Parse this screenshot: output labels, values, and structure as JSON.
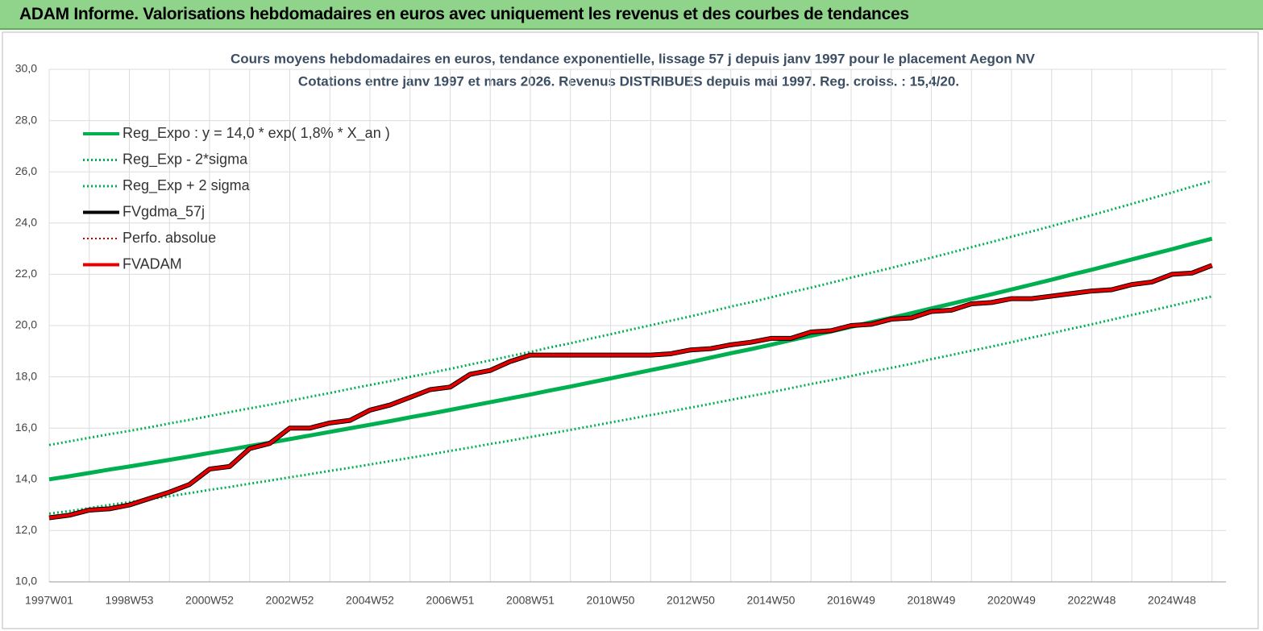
{
  "header": {
    "title": "ADAM Informe. Valorisations hebdomadaires en euros avec uniquement les revenus et des courbes de tendances"
  },
  "chart_data": {
    "type": "line",
    "title": "Cours moyens hebdomadaires en euros, tendance exponentielle, lissage 57 j depuis janv 1997 pour le placement Aegon NV",
    "subtitle": "Cotations entre janv 1997 et mars 2026. Revenus DISTRIBUES depuis mai 1997. Reg. croiss. : 15,4/20.",
    "categories": [
      "1997W01",
      null,
      null,
      null,
      "1998W53",
      null,
      null,
      null,
      "2000W52",
      null,
      null,
      null,
      "2002W52",
      null,
      null,
      null,
      "2004W52",
      null,
      null,
      null,
      "2006W51",
      null,
      null,
      null,
      "2008W51",
      null,
      null,
      null,
      "2010W50",
      null,
      null,
      null,
      "2012W50",
      null,
      null,
      null,
      "2014W50",
      null,
      null,
      null,
      "2016W49",
      null,
      null,
      null,
      "2018W49",
      null,
      null,
      null,
      "2020W49",
      null,
      null,
      null,
      "2022W48",
      null,
      null,
      null,
      "2024W48",
      null,
      null
    ],
    "ylim": [
      10,
      30
    ],
    "yticks": [
      {
        "value": 10,
        "label": "10,0"
      },
      {
        "value": 12,
        "label": "12,0"
      },
      {
        "value": 14,
        "label": "14,0"
      },
      {
        "value": 16,
        "label": "16,0"
      },
      {
        "value": 18,
        "label": "18,0"
      },
      {
        "value": 20,
        "label": "20,0"
      },
      {
        "value": 22,
        "label": "22,0"
      },
      {
        "value": 24,
        "label": "24,0"
      },
      {
        "value": 26,
        "label": "26,0"
      },
      {
        "value": 28,
        "label": "28,0"
      },
      {
        "value": 30,
        "label": "30,0"
      }
    ],
    "grid": true,
    "legend": "top-left",
    "series": [
      {
        "name": "Reg_Expo : y = 14,0 * exp( 1,8% *  X_an )",
        "color": "#00b050",
        "style": "solid",
        "width": 5,
        "values": [
          14.0,
          14.12,
          14.25,
          14.38,
          14.5,
          14.63,
          14.76,
          14.89,
          15.03,
          15.16,
          15.3,
          15.43,
          15.57,
          15.71,
          15.85,
          15.99,
          16.13,
          16.27,
          16.42,
          16.56,
          16.71,
          16.86,
          17.01,
          17.16,
          17.31,
          17.47,
          17.62,
          17.78,
          17.94,
          18.1,
          18.26,
          18.42,
          18.58,
          18.75,
          18.92,
          19.08,
          19.25,
          19.43,
          19.6,
          19.77,
          19.95,
          20.13,
          20.3,
          20.48,
          20.67,
          20.85,
          21.04,
          21.22,
          21.41,
          21.6,
          21.79,
          21.99,
          22.18,
          22.38,
          22.58,
          22.78,
          22.98,
          23.19,
          23.39
        ]
      },
      {
        "name": "Reg_Exp - 2*sigma",
        "color": "#00b050",
        "style": "dotted",
        "width": 3,
        "values": [
          12.66,
          12.76,
          12.88,
          13.0,
          13.11,
          13.23,
          13.34,
          13.46,
          13.59,
          13.7,
          13.83,
          13.95,
          14.08,
          14.2,
          14.33,
          14.45,
          14.58,
          14.71,
          14.84,
          14.97,
          15.11,
          15.24,
          15.38,
          15.51,
          15.65,
          15.79,
          15.93,
          16.07,
          16.22,
          16.36,
          16.51,
          16.65,
          16.8,
          16.95,
          17.1,
          17.25,
          17.4,
          17.56,
          17.72,
          17.87,
          18.03,
          18.2,
          18.35,
          18.51,
          18.69,
          18.85,
          19.02,
          19.18,
          19.35,
          19.53,
          19.7,
          19.88,
          20.05,
          20.23,
          20.41,
          20.59,
          20.77,
          20.96,
          21.14
        ]
      },
      {
        "name": "Reg_Exp + 2 sigma",
        "color": "#00b050",
        "style": "dotted",
        "width": 3,
        "values": [
          15.34,
          15.48,
          15.62,
          15.76,
          15.89,
          16.03,
          16.18,
          16.32,
          16.47,
          16.62,
          16.77,
          16.91,
          17.06,
          17.22,
          17.37,
          17.53,
          17.68,
          17.83,
          18.0,
          18.15,
          18.31,
          18.48,
          18.64,
          18.81,
          18.97,
          19.15,
          19.31,
          19.49,
          19.66,
          19.84,
          20.01,
          20.19,
          20.36,
          20.55,
          20.74,
          20.91,
          21.1,
          21.3,
          21.48,
          21.67,
          21.87,
          22.06,
          22.25,
          22.45,
          22.65,
          22.85,
          23.06,
          23.26,
          23.47,
          23.67,
          23.88,
          24.1,
          24.31,
          24.53,
          24.75,
          24.97,
          25.19,
          25.42,
          25.64
        ]
      },
      {
        "name": "FVgdma_57j",
        "color": "#000000",
        "style": "solid",
        "width": 6,
        "values": [
          12.5,
          12.6,
          12.8,
          12.85,
          13.0,
          13.25,
          13.5,
          13.8,
          14.4,
          14.5,
          15.2,
          15.4,
          16.0,
          16.0,
          16.2,
          16.3,
          16.7,
          16.9,
          17.2,
          17.5,
          17.6,
          18.1,
          18.25,
          18.6,
          18.85,
          18.85,
          18.85,
          18.85,
          18.85,
          18.85,
          18.85,
          18.9,
          19.05,
          19.1,
          19.25,
          19.35,
          19.5,
          19.5,
          19.75,
          19.8,
          20.0,
          20.05,
          20.25,
          20.3,
          20.55,
          20.6,
          20.85,
          20.9,
          21.05,
          21.05,
          21.15,
          21.25,
          21.35,
          21.4,
          21.6,
          21.7,
          22.0,
          22.05,
          22.35
        ]
      },
      {
        "name": "Perfo. absolue",
        "color": "#c00000",
        "style": "dotted",
        "width": 2,
        "values": [
          12.5,
          12.6,
          12.8,
          12.85,
          13.0,
          13.25,
          13.5,
          13.8,
          14.4,
          14.5,
          15.2,
          15.4,
          16.0,
          16.0,
          16.2,
          16.3,
          16.7,
          16.9,
          17.2,
          17.5,
          17.6,
          18.1,
          18.25,
          18.6,
          18.85,
          18.85,
          18.85,
          18.85,
          18.85,
          18.85,
          18.85,
          18.9,
          19.05,
          19.1,
          19.25,
          19.35,
          19.5,
          19.5,
          19.75,
          19.8,
          20.0,
          20.05,
          20.25,
          20.3,
          20.55,
          20.6,
          20.85,
          20.9,
          21.05,
          21.05,
          21.15,
          21.25,
          21.35,
          21.4,
          21.6,
          21.7,
          22.0,
          22.05,
          22.35
        ]
      },
      {
        "name": "FVADAM",
        "color": "#e50000",
        "style": "solid",
        "width": 4,
        "values": [
          12.5,
          12.6,
          12.8,
          12.85,
          13.0,
          13.25,
          13.5,
          13.8,
          14.4,
          14.5,
          15.2,
          15.4,
          16.0,
          16.0,
          16.2,
          16.3,
          16.7,
          16.9,
          17.2,
          17.5,
          17.6,
          18.1,
          18.25,
          18.6,
          18.85,
          18.85,
          18.85,
          18.85,
          18.85,
          18.85,
          18.85,
          18.9,
          19.05,
          19.1,
          19.25,
          19.35,
          19.5,
          19.5,
          19.75,
          19.8,
          20.0,
          20.05,
          20.25,
          20.3,
          20.55,
          20.6,
          20.85,
          20.9,
          21.05,
          21.05,
          21.15,
          21.25,
          21.35,
          21.4,
          21.6,
          21.7,
          22.0,
          22.05,
          22.35
        ]
      }
    ]
  }
}
